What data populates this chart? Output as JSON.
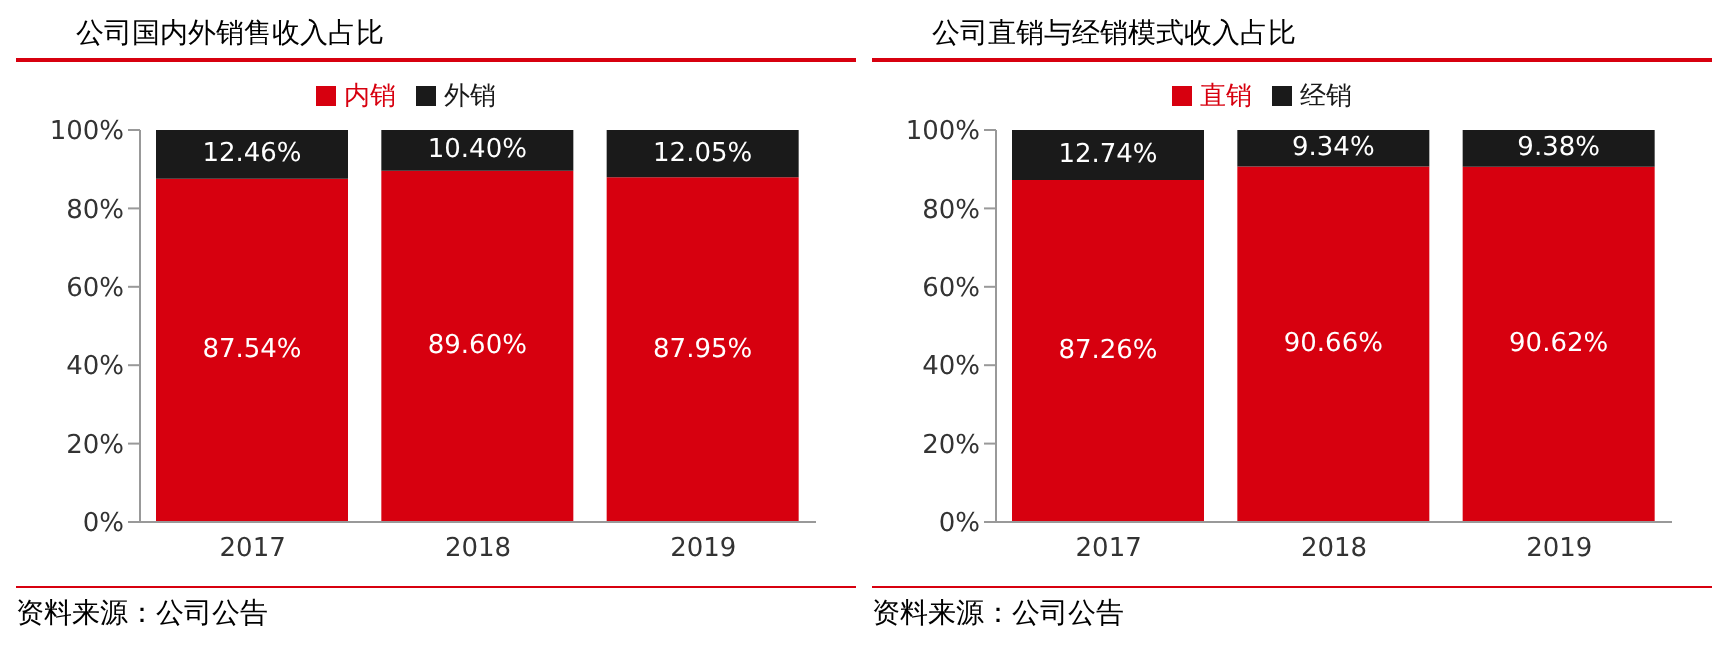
{
  "chart_data": [
    {
      "type": "bar",
      "title": "公司国内外销售收入占比",
      "categories": [
        "2017",
        "2018",
        "2019"
      ],
      "stacked": true,
      "legend": "top",
      "ylim": [
        0,
        100
      ],
      "yticks": [
        {
          "value": 0,
          "label": "0%"
        },
        {
          "value": 20,
          "label": "20%"
        },
        {
          "value": 40,
          "label": "40%"
        },
        {
          "value": 60,
          "label": "60%"
        },
        {
          "value": 80,
          "label": "80%"
        },
        {
          "value": 100,
          "label": "100%"
        }
      ],
      "annotations": [
        "资料来源：公司公告"
      ],
      "series": [
        {
          "name": "内销",
          "color": "#d7000f",
          "values": [
            87.54,
            89.6,
            87.95
          ],
          "value_labels": [
            "87.54%",
            "89.60%",
            "87.95%"
          ]
        },
        {
          "name": "外销",
          "color": "#1a1a1a",
          "values": [
            12.46,
            10.4,
            12.05
          ],
          "value_labels": [
            "12.46%",
            "10.40%",
            "12.05%"
          ]
        }
      ]
    },
    {
      "type": "bar",
      "title": "公司直销与经销模式收入占比",
      "categories": [
        "2017",
        "2018",
        "2019"
      ],
      "stacked": true,
      "legend": "top",
      "ylim": [
        0,
        100
      ],
      "yticks": [
        {
          "value": 0,
          "label": "0%"
        },
        {
          "value": 20,
          "label": "20%"
        },
        {
          "value": 40,
          "label": "40%"
        },
        {
          "value": 60,
          "label": "60%"
        },
        {
          "value": 80,
          "label": "80%"
        },
        {
          "value": 100,
          "label": "100%"
        }
      ],
      "annotations": [
        "资料来源：公司公告"
      ],
      "series": [
        {
          "name": "直销",
          "color": "#d7000f",
          "values": [
            87.26,
            90.66,
            90.62
          ],
          "value_labels": [
            "87.26%",
            "90.66%",
            "90.62%"
          ]
        },
        {
          "name": "经销",
          "color": "#1a1a1a",
          "values": [
            12.74,
            9.34,
            9.38
          ],
          "value_labels": [
            "12.74%",
            "9.34%",
            "9.38%"
          ]
        }
      ]
    }
  ]
}
